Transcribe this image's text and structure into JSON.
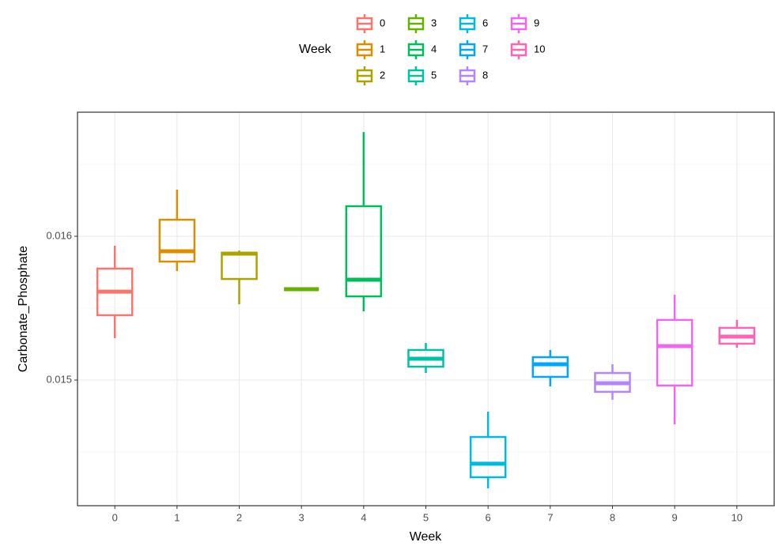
{
  "chart_data": {
    "type": "boxplot",
    "x_label": "Week",
    "y_label": "Carbonate_Phosphate",
    "legend_title": "Week",
    "categories": [
      "0",
      "1",
      "2",
      "3",
      "4",
      "5",
      "6",
      "7",
      "8",
      "9",
      "10"
    ],
    "colors": [
      "#F8766D",
      "#DB8E00",
      "#AEA200",
      "#64B200",
      "#00BD5C",
      "#00C1A7",
      "#00BADE",
      "#00A6FF",
      "#B385FF",
      "#EF67EB",
      "#FF63B6"
    ],
    "whislo": [
      0.015291,
      0.015758,
      0.015527,
      0.015632,
      0.015478,
      0.015049,
      0.014247,
      0.014956,
      0.014863,
      0.014692,
      0.015225
    ],
    "q1": [
      0.015451,
      0.015824,
      0.015703,
      0.015632,
      0.015582,
      0.015093,
      0.014324,
      0.015022,
      0.014918,
      0.014962,
      0.015253
    ],
    "median": [
      0.015615,
      0.015896,
      0.015879,
      0.015632,
      0.015698,
      0.015148,
      0.014418,
      0.01511,
      0.014978,
      0.015236,
      0.015302
    ],
    "q3": [
      0.015775,
      0.016115,
      0.015885,
      0.015632,
      0.016209,
      0.015209,
      0.014604,
      0.015159,
      0.015049,
      0.015418,
      0.015363
    ],
    "whishi": [
      0.015934,
      0.016324,
      0.015901,
      0.015632,
      0.016725,
      0.015258,
      0.01478,
      0.015209,
      0.01511,
      0.015593,
      0.015418
    ],
    "ylim": [
      0.014126,
      0.016863
    ],
    "yticks": [
      0.015,
      0.016
    ],
    "minor_yticks": [
      0.0145,
      0.0155,
      0.0165
    ],
    "grid": true,
    "legend_position": "top"
  }
}
